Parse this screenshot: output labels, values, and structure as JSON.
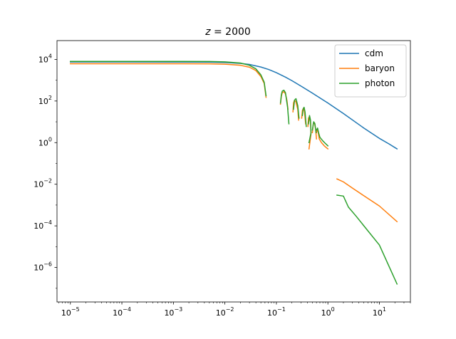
{
  "chart_data": {
    "type": "line",
    "title_prefix": "z",
    "title_suffix": " = 2000",
    "xscale": "log",
    "yscale": "log",
    "xlim": [
      5.5e-06,
      40
    ],
    "ylim": [
      2.2e-08,
      80000.0
    ],
    "x_ticks": [
      1e-05,
      0.0001,
      0.001,
      0.01,
      0.1,
      1,
      10
    ],
    "x_tick_labels": [
      {
        "base": "10",
        "exp": "−5"
      },
      {
        "base": "10",
        "exp": "−4"
      },
      {
        "base": "10",
        "exp": "−3"
      },
      {
        "base": "10",
        "exp": "−2"
      },
      {
        "base": "10",
        "exp": "−1"
      },
      {
        "base": "10",
        "exp": "0"
      },
      {
        "base": "10",
        "exp": "1"
      }
    ],
    "y_ticks": [
      1e-06,
      0.0001,
      0.01,
      1,
      100.0,
      10000.0
    ],
    "y_tick_labels": [
      {
        "base": "10",
        "exp": "−6"
      },
      {
        "base": "10",
        "exp": "−4"
      },
      {
        "base": "10",
        "exp": "−2"
      },
      {
        "base": "10",
        "exp": "0"
      },
      {
        "base": "10",
        "exp": "2"
      },
      {
        "base": "10",
        "exp": "4"
      }
    ],
    "grid": false,
    "legend_position": "top-right",
    "series": [
      {
        "name": "cdm",
        "color": "#1f77b4",
        "segments": [
          [
            [
              1e-05,
              7500
            ],
            [
              0.0001,
              7500
            ],
            [
              0.001,
              7480
            ],
            [
              0.005,
              7350
            ],
            [
              0.01,
              7100
            ],
            [
              0.02,
              6400
            ],
            [
              0.03,
              5700
            ],
            [
              0.05,
              4300
            ],
            [
              0.07,
              3300
            ],
            [
              0.1,
              2300
            ],
            [
              0.15,
              1400
            ],
            [
              0.2,
              950
            ],
            [
              0.3,
              520
            ],
            [
              0.5,
              240
            ],
            [
              0.7,
              140
            ],
            [
              1,
              80
            ],
            [
              2,
              25
            ],
            [
              5,
              5
            ],
            [
              10,
              1.6
            ],
            [
              15,
              0.9
            ],
            [
              22,
              0.5
            ]
          ]
        ]
      },
      {
        "name": "baryon",
        "color": "#ff7f0e",
        "segments": [
          [
            [
              1e-05,
              6200
            ],
            [
              0.0001,
              6200
            ],
            [
              0.001,
              6180
            ],
            [
              0.005,
              6100
            ],
            [
              0.01,
              5900
            ],
            [
              0.02,
              5200
            ],
            [
              0.03,
              4200
            ],
            [
              0.04,
              2900
            ],
            [
              0.05,
              1500
            ],
            [
              0.058,
              700
            ],
            [
              0.063,
              150
            ]
          ],
          [
            [
              0.12,
              70
            ],
            [
              0.125,
              170
            ],
            [
              0.13,
              250
            ],
            [
              0.14,
              280
            ],
            [
              0.15,
              220
            ],
            [
              0.16,
              110
            ],
            [
              0.168,
              40
            ]
          ],
          [
            [
              0.21,
              30
            ],
            [
              0.215,
              80
            ],
            [
              0.225,
              110
            ],
            [
              0.24,
              90
            ],
            [
              0.26,
              40
            ],
            [
              0.27,
              12
            ]
          ],
          [
            [
              0.31,
              15
            ],
            [
              0.32,
              35
            ],
            [
              0.335,
              45
            ],
            [
              0.35,
              32
            ],
            [
              0.37,
              8
            ]
          ],
          [
            [
              0.41,
              6
            ],
            [
              0.42,
              15
            ],
            [
              0.44,
              18
            ],
            [
              0.46,
              9
            ],
            [
              0.47,
              2.5
            ],
            [
              0.43,
              0.5
            ]
          ],
          [
            [
              0.5,
              3
            ],
            [
              0.52,
              8
            ],
            [
              0.55,
              9
            ],
            [
              0.58,
              4
            ],
            [
              0.6,
              1.5
            ]
          ],
          [
            [
              0.6,
              3
            ],
            [
              0.62,
              4.5
            ],
            [
              0.65,
              3
            ],
            [
              0.68,
              1.5
            ],
            [
              0.75,
              1
            ],
            [
              0.85,
              0.7
            ],
            [
              1,
              0.5
            ]
          ],
          [
            [
              1.5,
              0.018
            ],
            [
              2,
              0.013
            ],
            [
              3,
              0.0065
            ],
            [
              5,
              0.0028
            ],
            [
              10,
              0.0009
            ],
            [
              22,
              0.00016
            ]
          ]
        ]
      },
      {
        "name": "photon",
        "color": "#2ca02c",
        "segments": [
          [
            [
              1e-05,
              8000
            ],
            [
              0.0001,
              8000
            ],
            [
              0.001,
              7980
            ],
            [
              0.005,
              7900
            ],
            [
              0.01,
              7600
            ],
            [
              0.02,
              6700
            ],
            [
              0.03,
              5200
            ],
            [
              0.04,
              3500
            ],
            [
              0.05,
              1800
            ],
            [
              0.058,
              800
            ],
            [
              0.063,
              180
            ]
          ],
          [
            [
              0.12,
              80
            ],
            [
              0.125,
              200
            ],
            [
              0.13,
              300
            ],
            [
              0.14,
              330
            ],
            [
              0.15,
              250
            ],
            [
              0.165,
              50
            ],
            [
              0.175,
              8
            ]
          ],
          [
            [
              0.215,
              40
            ],
            [
              0.225,
              110
            ],
            [
              0.24,
              130
            ],
            [
              0.26,
              60
            ],
            [
              0.275,
              15
            ]
          ],
          [
            [
              0.32,
              20
            ],
            [
              0.33,
              40
            ],
            [
              0.345,
              50
            ],
            [
              0.36,
              30
            ],
            [
              0.38,
              6
            ]
          ],
          [
            [
              0.42,
              8
            ],
            [
              0.44,
              20
            ],
            [
              0.46,
              12
            ],
            [
              0.47,
              3
            ],
            [
              0.43,
              1
            ]
          ],
          [
            [
              0.5,
              4
            ],
            [
              0.53,
              10
            ],
            [
              0.56,
              8
            ],
            [
              0.59,
              3
            ]
          ],
          [
            [
              0.6,
              4
            ],
            [
              0.63,
              5
            ],
            [
              0.66,
              3
            ],
            [
              0.7,
              1.8
            ],
            [
              0.8,
              1.2
            ],
            [
              0.9,
              0.9
            ],
            [
              1,
              0.7
            ]
          ],
          [
            [
              1.5,
              0.003
            ],
            [
              2,
              0.0027
            ],
            [
              2.5,
              0.0008
            ],
            [
              3.5,
              0.0003
            ],
            [
              5,
              0.0001
            ],
            [
              10,
              1.2e-05
            ],
            [
              22,
              1.6e-07
            ]
          ]
        ]
      }
    ]
  }
}
